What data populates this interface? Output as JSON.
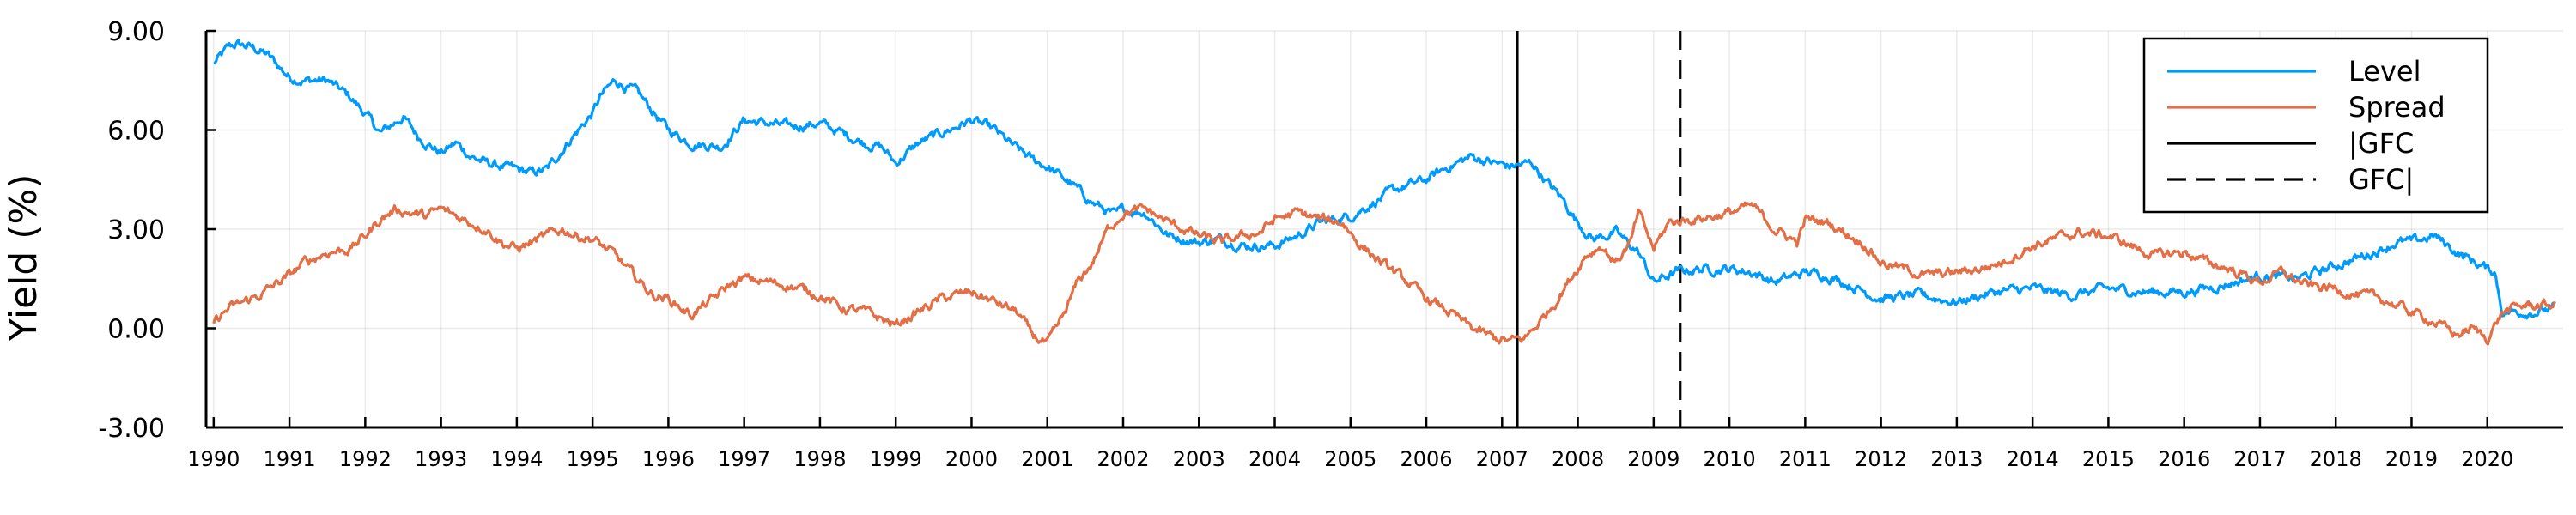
{
  "chart_data": {
    "type": "line",
    "title": "",
    "xlabel": "",
    "ylabel": "Yield (%)",
    "ylim": [
      -3,
      9
    ],
    "xlim": [
      1989.9,
      2021.0
    ],
    "yticks": [
      "-3.00",
      "0.00",
      "3.00",
      "6.00",
      "9.00"
    ],
    "xticks": [
      "1990",
      "1991",
      "1992",
      "1993",
      "1994",
      "1995",
      "1996",
      "1997",
      "1998",
      "1999",
      "2000",
      "2001",
      "2002",
      "2003",
      "2004",
      "2005",
      "2006",
      "2007",
      "2008",
      "2009",
      "2010",
      "2011",
      "2012",
      "2013",
      "2014",
      "2015",
      "2016",
      "2017",
      "2018",
      "2019",
      "2020"
    ],
    "grid": true,
    "legend_position": "top-right",
    "series": [
      {
        "name": "Level",
        "color": "#009AFA",
        "x": [
          1990.0,
          1990.2,
          1990.3,
          1990.5,
          1990.7,
          1991.0,
          1991.2,
          1991.5,
          1991.8,
          1992.0,
          1992.2,
          1992.5,
          1992.7,
          1993.0,
          1993.2,
          1993.4,
          1993.6,
          1993.8,
          1994.0,
          1994.2,
          1994.4,
          1994.7,
          1995.0,
          1995.1,
          1995.3,
          1995.6,
          1996.0,
          1996.3,
          1996.7,
          1997.0,
          1997.3,
          1997.6,
          1998.0,
          1998.3,
          1998.6,
          1998.8,
          1999.0,
          1999.3,
          1999.6,
          2000.0,
          2000.3,
          2000.5,
          2000.8,
          2001.0,
          2001.3,
          2001.6,
          2001.9,
          2002.0,
          2002.3,
          2002.6,
          2003.0,
          2003.3,
          2003.6,
          2004.0,
          2004.3,
          2004.6,
          2005.0,
          2005.3,
          2005.6,
          2006.0,
          2006.3,
          2006.6,
          2006.9,
          2007.1,
          2007.4,
          2007.6,
          2007.8,
          2008.0,
          2008.2,
          2008.5,
          2008.8,
          2009.0,
          2009.3,
          2009.6,
          2010.0,
          2010.3,
          2010.6,
          2011.0,
          2011.3,
          2011.6,
          2012.0,
          2012.5,
          2013.0,
          2013.5,
          2014.0,
          2014.5,
          2015.0,
          2015.5,
          2016.0,
          2016.5,
          2017.0,
          2017.5,
          2018.0,
          2018.5,
          2018.8,
          2019.0,
          2019.3,
          2019.6,
          2020.0,
          2020.1,
          2020.2,
          2020.4,
          2020.6,
          2020.9
        ],
        "y": [
          8.0,
          8.5,
          8.6,
          8.5,
          8.3,
          7.6,
          7.5,
          7.5,
          7.0,
          6.5,
          5.9,
          6.4,
          5.8,
          5.3,
          5.6,
          5.2,
          5.0,
          4.9,
          4.8,
          4.7,
          4.8,
          5.7,
          6.5,
          7.0,
          7.5,
          7.1,
          6.0,
          5.6,
          5.5,
          6.3,
          6.2,
          6.1,
          6.2,
          5.9,
          5.6,
          5.5,
          5.0,
          5.6,
          5.9,
          6.3,
          6.0,
          5.6,
          5.1,
          4.9,
          4.4,
          3.8,
          3.4,
          3.6,
          3.5,
          2.8,
          2.6,
          2.7,
          2.5,
          2.5,
          2.8,
          3.2,
          3.4,
          3.8,
          4.2,
          4.5,
          4.9,
          5.2,
          5.0,
          4.9,
          5.0,
          4.4,
          3.9,
          3.2,
          2.7,
          2.9,
          2.3,
          1.4,
          1.7,
          1.8,
          1.8,
          1.7,
          1.4,
          1.7,
          1.6,
          1.3,
          0.9,
          1.0,
          0.8,
          1.1,
          1.2,
          1.0,
          1.2,
          1.1,
          1.1,
          1.3,
          1.6,
          1.5,
          1.9,
          2.3,
          2.6,
          2.6,
          2.8,
          2.3,
          1.8,
          1.7,
          0.5,
          0.5,
          0.5,
          0.6
        ]
      },
      {
        "name": "Spread",
        "color": "#E26F46",
        "x": [
          1990.0,
          1990.2,
          1990.4,
          1990.6,
          1990.8,
          1991.0,
          1991.2,
          1991.5,
          1991.8,
          1992.0,
          1992.2,
          1992.4,
          1992.6,
          1992.8,
          1993.0,
          1993.3,
          1993.6,
          1993.8,
          1994.0,
          1994.3,
          1994.6,
          1994.8,
          1995.0,
          1995.3,
          1995.5,
          1995.8,
          1996.0,
          1996.3,
          1996.6,
          1996.8,
          1997.0,
          1997.3,
          1997.6,
          1998.0,
          1998.3,
          1998.6,
          1998.8,
          1999.0,
          1999.3,
          1999.6,
          2000.0,
          2000.3,
          2000.6,
          2000.8,
          2001.0,
          2001.2,
          2001.4,
          2001.6,
          2001.8,
          2002.0,
          2002.3,
          2002.6,
          2003.0,
          2003.3,
          2003.6,
          2003.8,
          2004.0,
          2004.3,
          2004.6,
          2004.9,
          2005.1,
          2005.4,
          2005.7,
          2006.0,
          2006.3,
          2006.6,
          2006.9,
          2007.1,
          2007.3,
          2007.5,
          2007.7,
          2007.9,
          2008.1,
          2008.3,
          2008.5,
          2008.7,
          2008.8,
          2009.0,
          2009.2,
          2009.5,
          2009.8,
          2010.0,
          2010.3,
          2010.6,
          2010.9,
          2011.0,
          2011.3,
          2011.6,
          2011.8,
          2012.0,
          2012.3,
          2012.6,
          2013.0,
          2013.3,
          2013.6,
          2014.0,
          2014.3,
          2014.6,
          2015.0,
          2015.3,
          2015.6,
          2016.0,
          2016.3,
          2016.6,
          2017.0,
          2017.3,
          2017.6,
          2018.0,
          2018.3,
          2018.6,
          2019.0,
          2019.3,
          2019.6,
          2019.8,
          2020.0,
          2020.2,
          2020.5,
          2020.9
        ],
        "y": [
          0.2,
          0.6,
          0.8,
          1.0,
          1.3,
          1.6,
          2.0,
          2.3,
          2.4,
          2.8,
          3.3,
          3.6,
          3.5,
          3.4,
          3.6,
          3.3,
          3.0,
          2.6,
          2.4,
          2.7,
          3.0,
          2.8,
          2.7,
          2.2,
          1.7,
          1.0,
          0.9,
          0.4,
          0.9,
          1.3,
          1.5,
          1.4,
          1.3,
          1.0,
          0.6,
          0.5,
          0.3,
          0.1,
          0.5,
          0.9,
          1.1,
          0.8,
          0.5,
          -0.2,
          -0.5,
          0.3,
          1.4,
          2.0,
          3.0,
          3.5,
          3.6,
          3.2,
          2.8,
          2.6,
          2.8,
          2.9,
          3.3,
          3.5,
          3.3,
          3.2,
          2.6,
          2.0,
          1.5,
          0.9,
          0.5,
          0.0,
          -0.3,
          -0.4,
          -0.3,
          0.2,
          0.8,
          1.5,
          2.2,
          2.5,
          2.0,
          2.6,
          3.5,
          2.4,
          3.2,
          3.3,
          3.4,
          3.5,
          3.7,
          3.0,
          2.6,
          3.3,
          3.2,
          2.8,
          2.5,
          2.0,
          1.8,
          1.6,
          1.7,
          1.8,
          2.0,
          2.5,
          2.7,
          2.9,
          2.8,
          2.5,
          2.2,
          2.3,
          2.0,
          1.8,
          1.4,
          1.7,
          1.3,
          1.2,
          1.0,
          0.9,
          0.5,
          0.2,
          -0.2,
          0.0,
          -0.3,
          0.5,
          0.7,
          0.7
        ]
      }
    ],
    "vlines": [
      {
        "name": "|GFC",
        "x": 2007.2,
        "style": "solid",
        "color": "#000000"
      },
      {
        "name": "GFC|",
        "x": 2009.35,
        "style": "dashed",
        "color": "#000000"
      }
    ]
  }
}
